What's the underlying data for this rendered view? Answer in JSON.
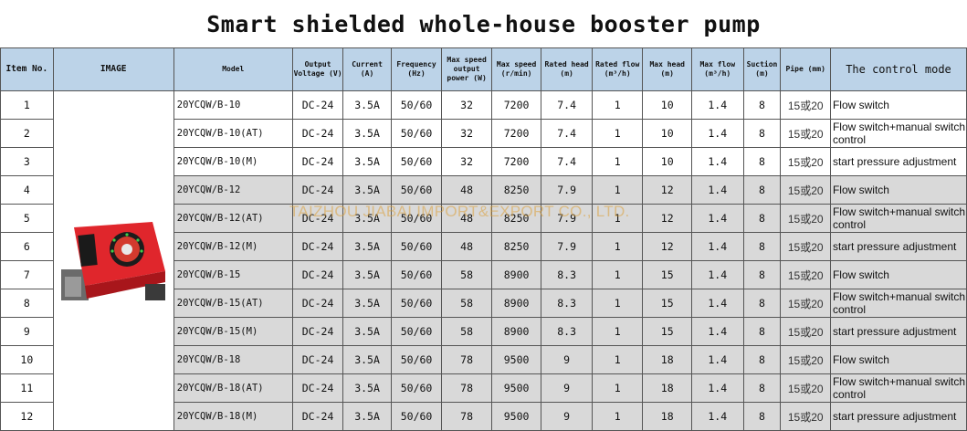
{
  "title": "Smart shielded whole-house booster pump",
  "headers": {
    "item_no": "Item No.",
    "image": "IMAGE",
    "model": "Model",
    "output_voltage": "Output Voltage (V)",
    "current": "Current (A)",
    "frequency": "Frequency (Hz)",
    "max_speed_output_power": "Max speed output power (W)",
    "max_speed": "Max speed (r/min)",
    "rated_head": "Rated head (m)",
    "rated_flow": "Rated flow (m³/h)",
    "max_head": "Max head (m)",
    "max_flow": "Max flow (m³/h)",
    "suction": "Suction (m)",
    "pipe": "Pipe (mm)",
    "control_mode": "The control mode"
  },
  "rows": [
    {
      "no": "1",
      "model": "20YCQW/B-10",
      "voltage": "DC-24",
      "current": "3.5A",
      "freq": "50/60",
      "power": "32",
      "speed": "7200",
      "rated_head": "7.4",
      "rated_flow": "1",
      "max_head": "10",
      "max_flow": "1.4",
      "suction": "8",
      "pipe": "15或20",
      "mode": "Flow switch"
    },
    {
      "no": "2",
      "model": "20YCQW/B-10(AT)",
      "voltage": "DC-24",
      "current": "3.5A",
      "freq": "50/60",
      "power": "32",
      "speed": "7200",
      "rated_head": "7.4",
      "rated_flow": "1",
      "max_head": "10",
      "max_flow": "1.4",
      "suction": "8",
      "pipe": "15或20",
      "mode": "Flow switch+manual switch control"
    },
    {
      "no": "3",
      "model": "20YCQW/B-10(M)",
      "voltage": "DC-24",
      "current": "3.5A",
      "freq": "50/60",
      "power": "32",
      "speed": "7200",
      "rated_head": "7.4",
      "rated_flow": "1",
      "max_head": "10",
      "max_flow": "1.4",
      "suction": "8",
      "pipe": "15或20",
      "mode": "start pressure adjustment"
    },
    {
      "no": "4",
      "model": "20YCQW/B-12",
      "voltage": "DC-24",
      "current": "3.5A",
      "freq": "50/60",
      "power": "48",
      "speed": "8250",
      "rated_head": "7.9",
      "rated_flow": "1",
      "max_head": "12",
      "max_flow": "1.4",
      "suction": "8",
      "pipe": "15或20",
      "mode": "Flow switch"
    },
    {
      "no": "5",
      "model": "20YCQW/B-12(AT)",
      "voltage": "DC-24",
      "current": "3.5A",
      "freq": "50/60",
      "power": "48",
      "speed": "8250",
      "rated_head": "7.9",
      "rated_flow": "1",
      "max_head": "12",
      "max_flow": "1.4",
      "suction": "8",
      "pipe": "15或20",
      "mode": "Flow switch+manual switch control"
    },
    {
      "no": "6",
      "model": "20YCQW/B-12(M)",
      "voltage": "DC-24",
      "current": "3.5A",
      "freq": "50/60",
      "power": "48",
      "speed": "8250",
      "rated_head": "7.9",
      "rated_flow": "1",
      "max_head": "12",
      "max_flow": "1.4",
      "suction": "8",
      "pipe": "15或20",
      "mode": "start pressure adjustment"
    },
    {
      "no": "7",
      "model": "20YCQW/B-15",
      "voltage": "DC-24",
      "current": "3.5A",
      "freq": "50/60",
      "power": "58",
      "speed": "8900",
      "rated_head": "8.3",
      "rated_flow": "1",
      "max_head": "15",
      "max_flow": "1.4",
      "suction": "8",
      "pipe": "15或20",
      "mode": "Flow switch"
    },
    {
      "no": "8",
      "model": "20YCQW/B-15(AT)",
      "voltage": "DC-24",
      "current": "3.5A",
      "freq": "50/60",
      "power": "58",
      "speed": "8900",
      "rated_head": "8.3",
      "rated_flow": "1",
      "max_head": "15",
      "max_flow": "1.4",
      "suction": "8",
      "pipe": "15或20",
      "mode": "Flow switch+manual switch control"
    },
    {
      "no": "9",
      "model": "20YCQW/B-15(M)",
      "voltage": "DC-24",
      "current": "3.5A",
      "freq": "50/60",
      "power": "58",
      "speed": "8900",
      "rated_head": "8.3",
      "rated_flow": "1",
      "max_head": "15",
      "max_flow": "1.4",
      "suction": "8",
      "pipe": "15或20",
      "mode": "start pressure adjustment"
    },
    {
      "no": "10",
      "model": "20YCQW/B-18",
      "voltage": "DC-24",
      "current": "3.5A",
      "freq": "50/60",
      "power": "78",
      "speed": "9500",
      "rated_head": "9",
      "rated_flow": "1",
      "max_head": "18",
      "max_flow": "1.4",
      "suction": "8",
      "pipe": "15或20",
      "mode": "Flow switch"
    },
    {
      "no": "11",
      "model": "20YCQW/B-18(AT)",
      "voltage": "DC-24",
      "current": "3.5A",
      "freq": "50/60",
      "power": "78",
      "speed": "9500",
      "rated_head": "9",
      "rated_flow": "1",
      "max_head": "18",
      "max_flow": "1.4",
      "suction": "8",
      "pipe": "15或20",
      "mode": "Flow switch+manual switch control"
    },
    {
      "no": "12",
      "model": "20YCQW/B-18(M)",
      "voltage": "DC-24",
      "current": "3.5A",
      "freq": "50/60",
      "power": "78",
      "speed": "9500",
      "rated_head": "9",
      "rated_flow": "1",
      "max_head": "18",
      "max_flow": "1.4",
      "suction": "8",
      "pipe": "15或20",
      "mode": "start pressure adjustment"
    }
  ],
  "watermark": "TAIZHOU JIABAI IMPORT&EXPORT CO., LTD.",
  "colors": {
    "header_bg": "#bcd3e8",
    "shaded_row": "#d9d9d9",
    "pump_body": "#e0262c",
    "watermark": "#daa03c"
  },
  "image_subject": "red booster pump"
}
